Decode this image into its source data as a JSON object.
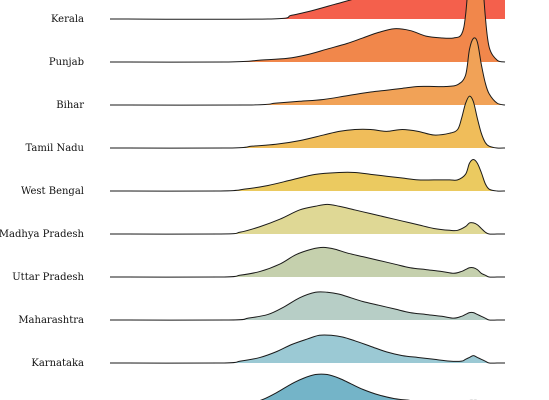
{
  "chart_data": {
    "type": "ridgeline",
    "title": "",
    "xlabel": "",
    "ylabel": "",
    "x_domain": [
      0,
      100
    ],
    "grid": false,
    "legend": "none",
    "rows": [
      {
        "label": "Kerala",
        "color": "#f4604c",
        "x": [
          0,
          40,
          46,
          52,
          57,
          62,
          66,
          69,
          72,
          75,
          78,
          81,
          84,
          86,
          88,
          90,
          92,
          93,
          94,
          95,
          96,
          98,
          100
        ],
        "y": [
          0,
          0,
          0.02,
          0.05,
          0.08,
          0.11,
          0.14,
          0.16,
          0.19,
          0.23,
          0.27,
          0.3,
          0.31,
          0.29,
          0.27,
          0.26,
          0.3,
          0.6,
          0.85,
          0.62,
          0.35,
          0.25,
          0.2
        ]
      },
      {
        "label": "Punjab",
        "color": "#f1874b",
        "x": [
          0,
          30,
          38,
          45,
          50,
          55,
          60,
          64,
          68,
          72,
          76,
          80,
          84,
          87,
          89,
          90,
          91,
          92,
          93,
          94,
          95,
          96,
          98,
          100
        ],
        "y": [
          0,
          0,
          0.01,
          0.02,
          0.04,
          0.07,
          0.1,
          0.13,
          0.16,
          0.18,
          0.17,
          0.14,
          0.13,
          0.13,
          0.15,
          0.25,
          0.5,
          0.7,
          0.85,
          0.55,
          0.25,
          0.08,
          0.01,
          0
        ]
      },
      {
        "label": "Bihar",
        "color": "#f1a257",
        "x": [
          0,
          35,
          42,
          48,
          54,
          60,
          66,
          70,
          74,
          78,
          82,
          85,
          88,
          90,
          91,
          92,
          93,
          94,
          95,
          96,
          98,
          100
        ],
        "y": [
          0,
          0,
          0.01,
          0.02,
          0.03,
          0.05,
          0.07,
          0.08,
          0.09,
          0.1,
          0.1,
          0.1,
          0.11,
          0.16,
          0.3,
          0.36,
          0.34,
          0.22,
          0.12,
          0.06,
          0.01,
          0
        ]
      },
      {
        "label": "Tamil Nadu",
        "color": "#f0bd5a",
        "x": [
          0,
          30,
          36,
          42,
          48,
          54,
          58,
          62,
          66,
          70,
          74,
          78,
          82,
          86,
          88,
          89,
          90,
          91,
          92,
          93,
          94,
          95,
          96,
          98,
          100
        ],
        "y": [
          0,
          0,
          0.01,
          0.02,
          0.04,
          0.07,
          0.09,
          0.1,
          0.1,
          0.09,
          0.1,
          0.09,
          0.07,
          0.08,
          0.1,
          0.16,
          0.24,
          0.28,
          0.25,
          0.16,
          0.08,
          0.03,
          0.01,
          0,
          0
        ]
      },
      {
        "label": "West Bengal",
        "color": "#ebca60",
        "x": [
          0,
          28,
          34,
          40,
          46,
          52,
          58,
          62,
          66,
          70,
          74,
          78,
          82,
          86,
          88,
          90,
          91,
          92,
          93,
          94,
          95,
          96,
          98,
          100
        ],
        "y": [
          0,
          0,
          0.01,
          0.03,
          0.06,
          0.09,
          0.1,
          0.1,
          0.09,
          0.08,
          0.07,
          0.06,
          0.06,
          0.06,
          0.06,
          0.09,
          0.15,
          0.17,
          0.15,
          0.1,
          0.04,
          0.01,
          0,
          0
        ]
      },
      {
        "label": "Madhya Pradesh",
        "color": "#dfd895",
        "x": [
          0,
          28,
          33,
          38,
          43,
          48,
          52,
          55,
          58,
          62,
          66,
          70,
          74,
          78,
          82,
          86,
          88,
          90,
          91,
          92,
          93,
          94,
          95,
          96,
          98,
          100
        ],
        "y": [
          0,
          0,
          0.01,
          0.04,
          0.08,
          0.13,
          0.15,
          0.16,
          0.15,
          0.13,
          0.11,
          0.09,
          0.07,
          0.05,
          0.03,
          0.02,
          0.02,
          0.04,
          0.06,
          0.06,
          0.05,
          0.03,
          0.01,
          0,
          0,
          0
        ]
      },
      {
        "label": "Uttar Pradesh",
        "color": "#c5d0ad",
        "x": [
          0,
          28,
          33,
          38,
          43,
          47,
          51,
          54,
          57,
          60,
          64,
          68,
          72,
          76,
          80,
          84,
          87,
          89,
          90,
          91,
          92,
          93,
          94,
          95,
          96,
          98,
          100
        ],
        "y": [
          0,
          0,
          0.01,
          0.03,
          0.07,
          0.12,
          0.15,
          0.16,
          0.15,
          0.13,
          0.11,
          0.09,
          0.07,
          0.05,
          0.04,
          0.03,
          0.02,
          0.03,
          0.04,
          0.05,
          0.05,
          0.04,
          0.02,
          0.01,
          0,
          0,
          0
        ]
      },
      {
        "label": "Maharashtra",
        "color": "#b7cec6",
        "x": [
          0,
          30,
          35,
          40,
          44,
          48,
          52,
          55,
          58,
          61,
          64,
          68,
          72,
          76,
          80,
          84,
          87,
          89,
          90,
          91,
          92,
          93,
          94,
          95,
          96,
          98,
          100
        ],
        "y": [
          0,
          0,
          0.01,
          0.03,
          0.07,
          0.12,
          0.15,
          0.15,
          0.14,
          0.12,
          0.1,
          0.08,
          0.06,
          0.04,
          0.03,
          0.02,
          0.01,
          0.02,
          0.03,
          0.04,
          0.04,
          0.03,
          0.02,
          0.01,
          0,
          0,
          0
        ]
      },
      {
        "label": "Karnataka",
        "color": "#9bc9d4",
        "x": [
          0,
          28,
          33,
          38,
          42,
          46,
          50,
          53,
          56,
          59,
          62,
          66,
          70,
          74,
          78,
          82,
          86,
          89,
          90,
          91,
          92,
          93,
          94,
          95,
          96,
          98,
          100
        ],
        "y": [
          0,
          0,
          0.01,
          0.03,
          0.06,
          0.1,
          0.13,
          0.15,
          0.15,
          0.14,
          0.12,
          0.09,
          0.06,
          0.04,
          0.03,
          0.02,
          0.01,
          0.01,
          0.02,
          0.03,
          0.04,
          0.03,
          0.02,
          0.01,
          0,
          0,
          0
        ]
      },
      {
        "label": "",
        "color": "#74b4c8",
        "x": [
          0,
          28,
          33,
          38,
          42,
          46,
          49,
          52,
          55,
          58,
          61,
          64,
          68,
          72,
          76,
          80,
          84,
          88,
          90,
          91,
          92,
          93,
          94,
          95,
          96,
          98,
          100
        ],
        "y": [
          0,
          0,
          0.01,
          0.03,
          0.07,
          0.12,
          0.15,
          0.17,
          0.17,
          0.15,
          0.12,
          0.09,
          0.06,
          0.04,
          0.03,
          0.02,
          0.01,
          0.01,
          0.02,
          0.03,
          0.03,
          0.03,
          0.02,
          0.01,
          0,
          0,
          0
        ]
      }
    ]
  }
}
